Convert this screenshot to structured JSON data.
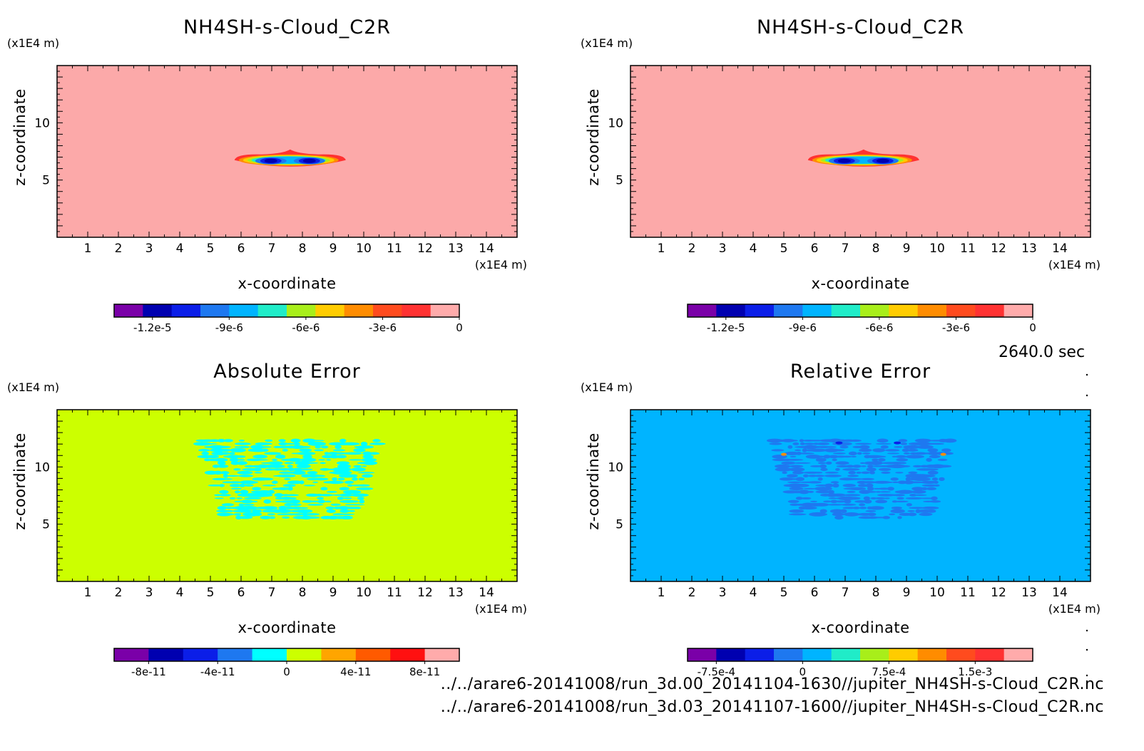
{
  "time_label": "2640.0 sec",
  "files": [
    "../../arare6-20141008/run_3d.00_20141104-1630//jupiter_NH4SH-s-Cloud_C2R.nc",
    "../../arare6-20141008/run_3d.03_20141107-1600//jupiter_NH4SH-s-Cloud_C2R.nc"
  ],
  "chart_data": [
    {
      "type": "heatmap",
      "title": "NH4SH-s-Cloud_C2R",
      "xlabel": "x-coordinate",
      "ylabel": "z-coordinate",
      "x_unit": "(x1E4 m)",
      "y_unit": "(x1E4 m)",
      "xlim": [
        0,
        15
      ],
      "ylim": [
        0,
        15
      ],
      "x_ticks": [
        1,
        2,
        3,
        4,
        5,
        6,
        7,
        8,
        9,
        10,
        11,
        12,
        13,
        14
      ],
      "y_ticks": [
        5,
        10
      ],
      "background": "#fca9a9",
      "colorbar": {
        "colors": [
          "#7a00a8",
          "#0000b0",
          "#0b1ee8",
          "#1e78f0",
          "#00b4ff",
          "#20ecc8",
          "#a8ee1a",
          "#ffcc00",
          "#ff8c00",
          "#ff4b1e",
          "#ff3232",
          "#ffabab"
        ],
        "tick_labels": [
          "-1.2e-5",
          "-9e-6",
          "-6e-6",
          "-3e-6",
          "0"
        ],
        "tick_values": [
          -1.2e-05,
          -9e-06,
          -6e-06,
          -3e-06,
          0
        ],
        "range": [
          -1.35e-05,
          0
        ]
      }
    },
    {
      "type": "heatmap",
      "title": "NH4SH-s-Cloud_C2R",
      "xlabel": "x-coordinate",
      "ylabel": "z-coordinate",
      "x_unit": "(x1E4 m)",
      "y_unit": "(x1E4 m)",
      "xlim": [
        0,
        15
      ],
      "ylim": [
        0,
        15
      ],
      "x_ticks": [
        1,
        2,
        3,
        4,
        5,
        6,
        7,
        8,
        9,
        10,
        11,
        12,
        13,
        14
      ],
      "y_ticks": [
        5,
        10
      ],
      "background": "#fca9a9",
      "colorbar": {
        "colors": [
          "#7a00a8",
          "#0000b0",
          "#0b1ee8",
          "#1e78f0",
          "#00b4ff",
          "#20ecc8",
          "#a8ee1a",
          "#ffcc00",
          "#ff8c00",
          "#ff4b1e",
          "#ff3232",
          "#ffabab"
        ],
        "tick_labels": [
          "-1.2e-5",
          "-9e-6",
          "-6e-6",
          "-3e-6",
          "0"
        ],
        "tick_values": [
          -1.2e-05,
          -9e-06,
          -6e-06,
          -3e-06,
          0
        ],
        "range": [
          -1.35e-05,
          0
        ]
      }
    },
    {
      "type": "heatmap",
      "title": "Absolute Error",
      "xlabel": "x-coordinate",
      "ylabel": "z-coordinate",
      "x_unit": "(x1E4 m)",
      "y_unit": "(x1E4 m)",
      "xlim": [
        0,
        15
      ],
      "ylim": [
        0,
        15
      ],
      "x_ticks": [
        1,
        2,
        3,
        4,
        5,
        6,
        7,
        8,
        9,
        10,
        11,
        12,
        13,
        14
      ],
      "y_ticks": [
        5,
        10
      ],
      "background": "#ccff00",
      "colorbar": {
        "colors": [
          "#7a00a8",
          "#0000b0",
          "#0b1ee8",
          "#1e78f0",
          "#00ffff",
          "#ccff00",
          "#ffa500",
          "#ff5a00",
          "#ff1010",
          "#ffabab"
        ],
        "tick_labels": [
          "-8e-11",
          "-4e-11",
          "0",
          "4e-11",
          "8e-11"
        ],
        "tick_values": [
          -8e-11,
          -4e-11,
          0,
          4e-11,
          8e-11
        ],
        "range": [
          -1e-10,
          1e-10
        ]
      }
    },
    {
      "type": "heatmap",
      "title": "Relative Error",
      "xlabel": "x-coordinate",
      "ylabel": "z-coordinate",
      "x_unit": "(x1E4 m)",
      "y_unit": "(x1E4 m)",
      "xlim": [
        0,
        15
      ],
      "ylim": [
        0,
        15
      ],
      "x_ticks": [
        1,
        2,
        3,
        4,
        5,
        6,
        7,
        8,
        9,
        10,
        11,
        12,
        13,
        14
      ],
      "y_ticks": [
        5,
        10
      ],
      "background": "#00b4ff",
      "colorbar": {
        "colors": [
          "#7a00a8",
          "#0000b0",
          "#0b1ee8",
          "#1e78f0",
          "#00b4ff",
          "#20ecc8",
          "#a8ee1a",
          "#ffcc00",
          "#ff8c00",
          "#ff4b1e",
          "#ff3232",
          "#ffabab"
        ],
        "tick_labels": [
          "-7.5e-4",
          "0",
          "7.5e-4",
          "1.5e-3"
        ],
        "tick_values": [
          -0.00075,
          0,
          0.00075,
          0.0015
        ],
        "range": [
          -0.001,
          0.002
        ]
      }
    }
  ]
}
